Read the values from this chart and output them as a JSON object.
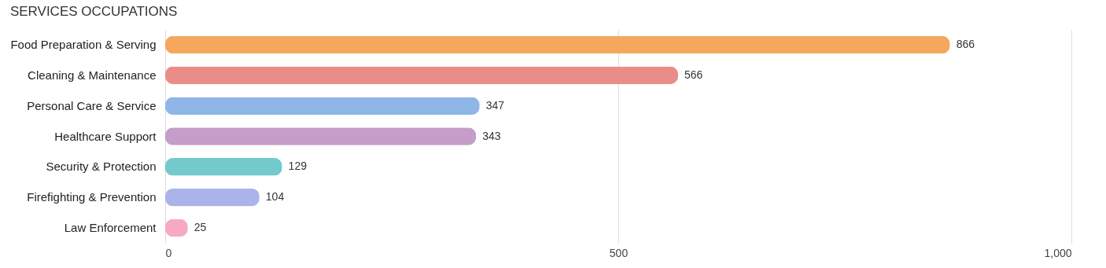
{
  "chart_data": {
    "type": "bar",
    "orientation": "horizontal",
    "title": "SERVICES OCCUPATIONS",
    "categories": [
      "Food Preparation & Serving",
      "Cleaning & Maintenance",
      "Personal Care & Service",
      "Healthcare Support",
      "Security & Protection",
      "Firefighting & Prevention",
      "Law Enforcement"
    ],
    "values": [
      866,
      566,
      347,
      343,
      129,
      104,
      25
    ],
    "colors": [
      "#f5a85c",
      "#ea8d88",
      "#8fb6e6",
      "#c49dc8",
      "#73c9cc",
      "#aab3ea",
      "#f7a8c4"
    ],
    "xlim": [
      0,
      1000
    ],
    "xticks": [
      0,
      500,
      {
        "value": 1000,
        "label": "1,000"
      }
    ],
    "grid": "x",
    "data_labels": true
  }
}
